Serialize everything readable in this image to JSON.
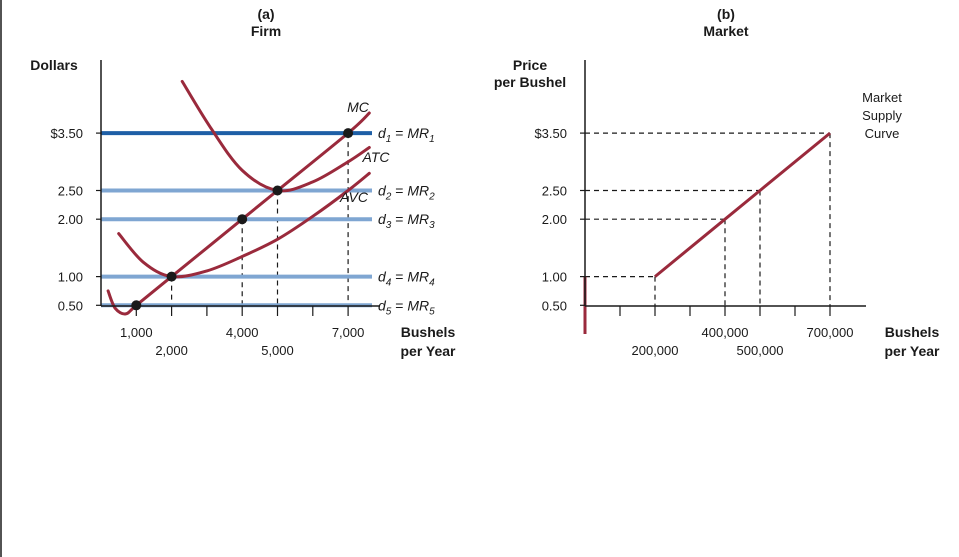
{
  "chart_data": [
    {
      "type": "line",
      "panel_label": "(a)",
      "title": "Firm",
      "ylabel": "Dollars",
      "xlabel_lines": [
        "Bushels",
        "per Year"
      ],
      "xlim": [
        0,
        8000
      ],
      "ylim": [
        0,
        4.5
      ],
      "x_ticks": [
        {
          "value": 1000,
          "label": "1,000",
          "row": "upper"
        },
        {
          "value": 2000,
          "label": "2,000",
          "row": "lower"
        },
        {
          "value": 3000,
          "label": "",
          "row": "none"
        },
        {
          "value": 4000,
          "label": "4,000",
          "row": "upper"
        },
        {
          "value": 5000,
          "label": "5,000",
          "row": "lower"
        },
        {
          "value": 6000,
          "label": "",
          "row": "none"
        },
        {
          "value": 7000,
          "label": "7,000",
          "row": "upper"
        }
      ],
      "y_ticks": [
        {
          "value": 3.5,
          "label": "$3.50"
        },
        {
          "value": 2.5,
          "label": "2.50"
        },
        {
          "value": 2.0,
          "label": "2.00"
        },
        {
          "value": 1.0,
          "label": "1.00"
        },
        {
          "value": 0.5,
          "label": "0.50"
        }
      ],
      "demand_lines": [
        {
          "price": 3.5,
          "d": "d",
          "d_sub": "1",
          "eq": " = ",
          "mr": "MR",
          "mr_sub": "1",
          "color": "#1e5fa6"
        },
        {
          "price": 2.5,
          "d": "d",
          "d_sub": "2",
          "eq": " = ",
          "mr": "MR",
          "mr_sub": "2",
          "color": "#7fa6d2"
        },
        {
          "price": 2.0,
          "d": "d",
          "d_sub": "3",
          "eq": " = ",
          "mr": "MR",
          "mr_sub": "3",
          "color": "#7fa6d2"
        },
        {
          "price": 1.0,
          "d": "d",
          "d_sub": "4",
          "eq": " = ",
          "mr": "MR",
          "mr_sub": "4",
          "color": "#7fa6d2"
        },
        {
          "price": 0.5,
          "d": "d",
          "d_sub": "5",
          "eq": " = ",
          "mr": "MR",
          "mr_sub": "5",
          "color": "#7fa6d2"
        }
      ],
      "series": [
        {
          "name": "MC",
          "color": "#9a2a3c",
          "points": [
            [
              200,
              0.75
            ],
            [
              400,
              0.45
            ],
            [
              700,
              0.35
            ],
            [
              1000,
              0.5
            ],
            [
              2000,
              1.0
            ],
            [
              4000,
              2.0
            ],
            [
              5000,
              2.5
            ],
            [
              7000,
              3.5
            ],
            [
              7600,
              3.85
            ]
          ]
        },
        {
          "name": "ATC",
          "color": "#9a2a3c",
          "points": [
            [
              2300,
              4.4
            ],
            [
              3100,
              3.6
            ],
            [
              4000,
              2.85
            ],
            [
              5000,
              2.5
            ],
            [
              6000,
              2.65
            ],
            [
              7000,
              3.0
            ],
            [
              7600,
              3.25
            ]
          ]
        },
        {
          "name": "AVC",
          "color": "#9a2a3c",
          "points": [
            [
              500,
              1.75
            ],
            [
              1200,
              1.25
            ],
            [
              2000,
              1.0
            ],
            [
              3000,
              1.1
            ],
            [
              4000,
              1.35
            ],
            [
              5000,
              1.65
            ],
            [
              6000,
              2.05
            ],
            [
              7000,
              2.5
            ],
            [
              7600,
              2.8
            ]
          ]
        }
      ],
      "equilibria": [
        {
          "x": 1000,
          "y": 0.5
        },
        {
          "x": 2000,
          "y": 1.0
        },
        {
          "x": 4000,
          "y": 2.0
        },
        {
          "x": 5000,
          "y": 2.5
        },
        {
          "x": 7000,
          "y": 3.5
        }
      ],
      "grid": false
    },
    {
      "type": "line",
      "panel_label": "(b)",
      "title": "Market",
      "ylabel_lines": [
        "Price",
        "per Bushel"
      ],
      "xlabel_lines": [
        "Bushels",
        "per Year"
      ],
      "xlim": [
        0,
        800000
      ],
      "ylim": [
        0,
        4.5
      ],
      "x_ticks": [
        {
          "value": 100000,
          "label": "",
          "row": "none"
        },
        {
          "value": 200000,
          "label": "200,000",
          "row": "lower"
        },
        {
          "value": 300000,
          "label": "",
          "row": "none"
        },
        {
          "value": 400000,
          "label": "400,000",
          "row": "upper"
        },
        {
          "value": 500000,
          "label": "500,000",
          "row": "lower"
        },
        {
          "value": 600000,
          "label": "",
          "row": "none"
        },
        {
          "value": 700000,
          "label": "700,000",
          "row": "upper"
        }
      ],
      "y_ticks": [
        {
          "value": 3.5,
          "label": "$3.50"
        },
        {
          "value": 2.5,
          "label": "2.50"
        },
        {
          "value": 2.0,
          "label": "2.00"
        },
        {
          "value": 1.0,
          "label": "1.00"
        },
        {
          "value": 0.5,
          "label": "0.50"
        }
      ],
      "series": [
        {
          "name": "Market Supply Curve",
          "name_lines": [
            "Market",
            "Supply",
            "Curve"
          ],
          "color": "#9a2a3c",
          "points": [
            [
              200000,
              1.0
            ],
            [
              400000,
              2.0
            ],
            [
              500000,
              2.5
            ],
            [
              700000,
              3.5
            ]
          ]
        },
        {
          "name": "",
          "color": "#9a2a3c",
          "points": [
            [
              0,
              0
            ],
            [
              0,
              1.0
            ]
          ]
        }
      ],
      "reference_points": [
        {
          "x": 200000,
          "y": 1.0
        },
        {
          "x": 400000,
          "y": 2.0
        },
        {
          "x": 500000,
          "y": 2.5
        },
        {
          "x": 700000,
          "y": 3.5
        }
      ],
      "grid": false
    }
  ]
}
